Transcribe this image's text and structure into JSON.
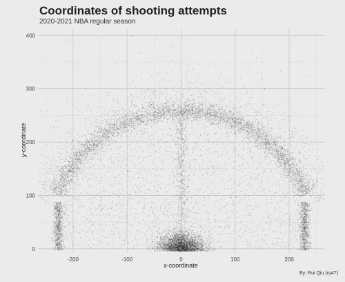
{
  "chart_data": {
    "type": "scatter",
    "title": "Coordinates of shooting attempts",
    "subtitle": "2020-2021 NBA regular season",
    "xlabel": "x-coordinate",
    "ylabel": "y-coordinate",
    "caption": "By: Rui Qiu (rq47)",
    "xlim": [
      -265,
      265
    ],
    "ylim": [
      -8,
      412
    ],
    "x_ticks": [
      -200,
      -100,
      0,
      100,
      200
    ],
    "y_ticks": [
      0,
      100,
      200,
      300,
      400
    ],
    "x_tick_labels": [
      "-200",
      "-100",
      "0",
      "100",
      "200"
    ],
    "y_tick_labels": [
      "0",
      "100",
      "200",
      "300",
      "400"
    ],
    "grid": true,
    "point_color": "#000000",
    "background": "#ebebeb",
    "gridline_color": "#c8c8c8",
    "density_components": [
      {
        "region": "rim area",
        "center_x": 0,
        "center_y": 8,
        "spread_x": 22,
        "spread_y": 14
      },
      {
        "region": "three-point arc",
        "center_x": 0,
        "center_y": 0,
        "radius": 240,
        "arc_from_y": 90
      },
      {
        "region": "left corner three",
        "x": -225,
        "y_range": [
          0,
          90
        ]
      },
      {
        "region": "right corner three",
        "x": 225,
        "y_range": [
          0,
          90
        ]
      },
      {
        "region": "midrange and paint",
        "x_range": [
          -220,
          220
        ],
        "y_range": [
          0,
          230
        ]
      },
      {
        "region": "beyond the arc",
        "x_range": [
          -250,
          250
        ],
        "y_range": [
          0,
          400
        ]
      }
    ]
  }
}
